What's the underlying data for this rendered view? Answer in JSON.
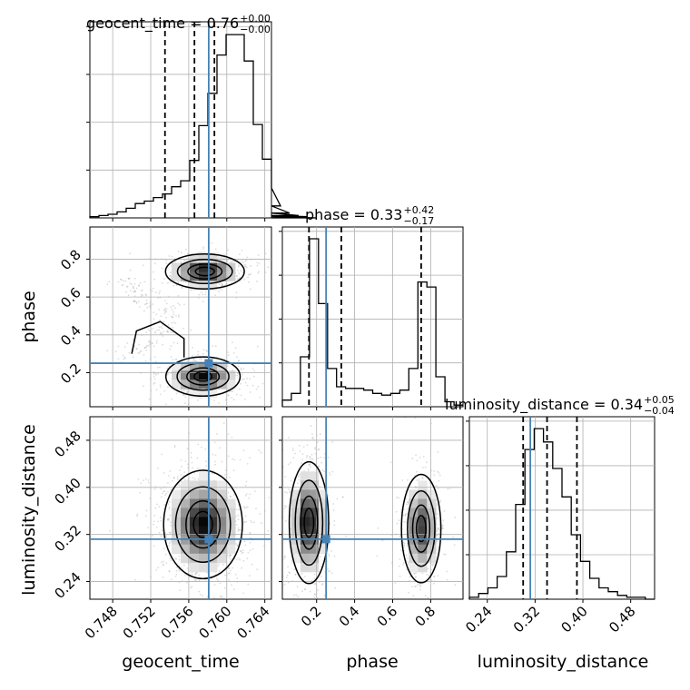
{
  "chart_data": {
    "type": "corner",
    "parameters": [
      "geocent_time",
      "phase",
      "luminosity_distance"
    ],
    "axis_labels": [
      "geocent_time",
      "phase",
      "luminosity_distance"
    ],
    "titles": [
      {
        "param": "geocent_time",
        "text": "geocent_time = 0.76",
        "plus": "+0.00",
        "minus": "−0.00"
      },
      {
        "param": "phase",
        "text": "phase = 0.33",
        "plus": "+0.42",
        "minus": "−0.17"
      },
      {
        "param": "luminosity_distance",
        "text": "luminosity_distance = 0.34",
        "plus": "+0.05",
        "minus": "−0.04"
      }
    ],
    "truths": {
      "geocent_time": 0.7581,
      "phase": 0.25,
      "luminosity_distance": 0.312
    },
    "ranges": {
      "geocent_time": [
        0.7456,
        0.7647
      ],
      "phase": [
        0.02,
        0.97
      ],
      "luminosity_distance": [
        0.21,
        0.52
      ]
    },
    "ticks": {
      "geocent_time": [
        "0.748",
        "0.752",
        "0.756",
        "0.760",
        "0.764"
      ],
      "phase": [
        "0.2",
        "0.4",
        "0.6",
        "0.8"
      ],
      "luminosity_distance": [
        "0.24",
        "0.32",
        "0.40",
        "0.48"
      ]
    },
    "histograms": {
      "geocent_time": {
        "edges_start": 0.7456,
        "bin_width": 0.000955,
        "counts": [
          1,
          2,
          3,
          5,
          8,
          12,
          14,
          17,
          20,
          26,
          31,
          48,
          77,
          104,
          136,
          153,
          153,
          131,
          78,
          49,
          25,
          10,
          4,
          2,
          1,
          0
        ],
        "quantiles": [
          0.7535,
          0.7566,
          0.7587
        ]
      },
      "phase": {
        "edges_start": 0.02,
        "bin_width": 0.0475,
        "counts": [
          4,
          8,
          30,
          101,
          62,
          23,
          12,
          11,
          11,
          10,
          8,
          7,
          8,
          10,
          23,
          75,
          72,
          18,
          3,
          1
        ],
        "quantiles": [
          0.16,
          0.33,
          0.75
        ]
      },
      "luminosity_distance": {
        "edges_start": 0.21,
        "bin_width": 0.0155,
        "counts": [
          1,
          3,
          6,
          12,
          25,
          50,
          79,
          90,
          83,
          69,
          54,
          34,
          20,
          11,
          6,
          4,
          2,
          1,
          1,
          0
        ],
        "quantiles": [
          0.3,
          0.34,
          0.39
        ]
      }
    },
    "modes_2d": {
      "phase_vs_geocent_time": [
        {
          "x": 0.7577,
          "y": 0.735,
          "sx": 0.0018,
          "sy": 0.04,
          "w": 0.5
        },
        {
          "x": 0.7575,
          "y": 0.18,
          "sx": 0.0017,
          "sy": 0.045,
          "w": 0.5
        }
      ],
      "luminosity_distance_vs_geocent_time": [
        {
          "x": 0.7575,
          "y": 0.337,
          "sx": 0.0018,
          "sy": 0.04,
          "w": 1.0
        }
      ],
      "luminosity_distance_vs_phase": [
        {
          "x": 0.16,
          "y": 0.34,
          "sx": 0.045,
          "sy": 0.045,
          "w": 0.55
        },
        {
          "x": 0.75,
          "y": 0.33,
          "sx": 0.045,
          "sy": 0.04,
          "w": 0.45
        }
      ]
    },
    "grid": true,
    "colors": {
      "truth": "#4682b4",
      "hist": "#000000",
      "scatter": "#9a9a9a"
    }
  }
}
